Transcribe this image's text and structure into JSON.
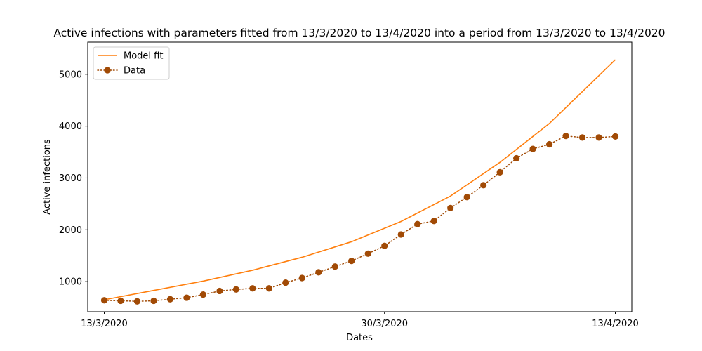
{
  "chart_data": {
    "type": "line",
    "title": "Active infections with parameters fitted from 13/3/2020 to 13/4/2020 into a period from 13/3/2020 to 13/4/2020",
    "xlabel": "Dates",
    "ylabel": "Active infections",
    "x_ticks": [
      {
        "date": "13/3/2020",
        "label": "13/3/2020"
      },
      {
        "date": "30/3/2020",
        "label": "30/3/2020"
      },
      {
        "date": "13/4/2020",
        "label": "13/4/2020"
      }
    ],
    "xlim": [
      "12/3/2020",
      "14/4/2020"
    ],
    "y_ticks": [
      1000,
      2000,
      3000,
      4000,
      5000
    ],
    "ylim": [
      420,
      5620
    ],
    "grid": false,
    "legend_position": "top-left",
    "series": [
      {
        "name": "Model fit",
        "style": "line",
        "color": "#ff7f0e",
        "x": [
          "13/3/2020",
          "16/3/2020",
          "19/3/2020",
          "22/3/2020",
          "25/3/2020",
          "28/3/2020",
          "31/3/2020",
          "3/4/2020",
          "6/4/2020",
          "9/4/2020",
          "13/4/2020"
        ],
        "y": [
          650,
          830,
          1010,
          1220,
          1470,
          1770,
          2160,
          2650,
          3300,
          4050,
          5280
        ]
      },
      {
        "name": "Data",
        "style": "dotted-markers",
        "color": "#a14a05",
        "x": [
          "13/3/2020",
          "14/3/2020",
          "15/3/2020",
          "16/3/2020",
          "17/3/2020",
          "18/3/2020",
          "19/3/2020",
          "20/3/2020",
          "21/3/2020",
          "22/3/2020",
          "23/3/2020",
          "24/3/2020",
          "25/3/2020",
          "26/3/2020",
          "27/3/2020",
          "28/3/2020",
          "29/3/2020",
          "30/3/2020",
          "31/3/2020",
          "1/4/2020",
          "2/4/2020",
          "3/4/2020",
          "4/4/2020",
          "5/4/2020",
          "6/4/2020",
          "7/4/2020",
          "8/4/2020",
          "9/4/2020",
          "10/4/2020",
          "11/4/2020",
          "12/4/2020",
          "13/4/2020"
        ],
        "y": [
          640,
          630,
          620,
          630,
          660,
          690,
          750,
          820,
          850,
          870,
          870,
          980,
          1070,
          1180,
          1290,
          1400,
          1540,
          1690,
          1910,
          2110,
          2170,
          2420,
          2630,
          2860,
          3110,
          3380,
          3560,
          3650,
          3810,
          3780,
          3780,
          3800
        ]
      }
    ]
  }
}
